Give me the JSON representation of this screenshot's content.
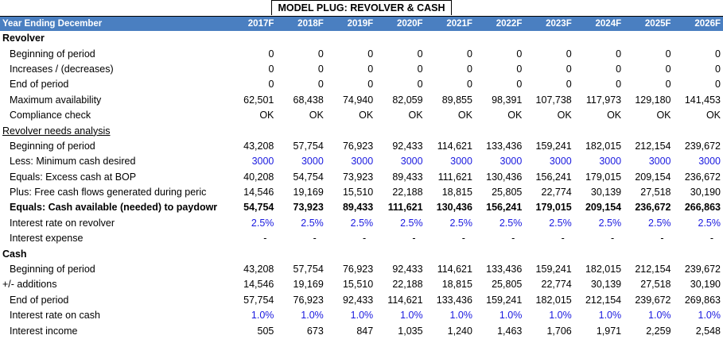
{
  "title": "MODEL PLUG: REVOLVER & CASH",
  "header": {
    "label": "Year Ending December",
    "years": [
      "2017F",
      "2018F",
      "2019F",
      "2020F",
      "2021F",
      "2022F",
      "2023F",
      "2024F",
      "2025F",
      "2026F"
    ]
  },
  "rows": [
    {
      "label": "Revolver"
    },
    {
      "label": "Beginning of period",
      "values": [
        0,
        0,
        0,
        0,
        0,
        0,
        0,
        0,
        0,
        0
      ]
    },
    {
      "label": "Increases / (decreases)",
      "values": [
        0,
        0,
        0,
        0,
        0,
        0,
        0,
        0,
        0,
        0
      ]
    },
    {
      "label": "End of period",
      "values": [
        0,
        0,
        0,
        0,
        0,
        0,
        0,
        0,
        0,
        0
      ]
    },
    {
      "label": "Maximum availability",
      "values": [
        "62,501",
        "68,438",
        "74,940",
        "82,059",
        "89,855",
        "98,391",
        "107,738",
        "117,973",
        "129,180",
        "141,453"
      ]
    },
    {
      "label": "Compliance check",
      "values": [
        "OK",
        "OK",
        "OK",
        "OK",
        "OK",
        "OK",
        "OK",
        "OK",
        "OK",
        "OK"
      ]
    },
    {
      "label": "Revolver needs analysis"
    },
    {
      "label": "Beginning of period",
      "values": [
        "43,208",
        "57,754",
        "76,923",
        "92,433",
        "114,621",
        "133,436",
        "159,241",
        "182,015",
        "212,154",
        "239,672"
      ]
    },
    {
      "label": "Less: Minimum cash desired",
      "values": [
        3000,
        3000,
        3000,
        3000,
        3000,
        3000,
        3000,
        3000,
        3000,
        3000
      ]
    },
    {
      "label": "Equals: Excess cash at BOP",
      "values": [
        "40,208",
        "54,754",
        "73,923",
        "89,433",
        "111,621",
        "130,436",
        "156,241",
        "179,015",
        "209,154",
        "236,672"
      ]
    },
    {
      "label": "Plus: Free cash flows generated during peric",
      "values": [
        "14,546",
        "19,169",
        "15,510",
        "22,188",
        "18,815",
        "25,805",
        "22,774",
        "30,139",
        "27,518",
        "30,190"
      ]
    },
    {
      "label": "Equals: Cash available (needed) to paydowr",
      "values": [
        "54,754",
        "73,923",
        "89,433",
        "111,621",
        "130,436",
        "156,241",
        "179,015",
        "209,154",
        "236,672",
        "266,863"
      ]
    },
    {
      "label": "Interest rate on revolver",
      "values": [
        "2.5%",
        "2.5%",
        "2.5%",
        "2.5%",
        "2.5%",
        "2.5%",
        "2.5%",
        "2.5%",
        "2.5%",
        "2.5%"
      ]
    },
    {
      "label": "Interest expense",
      "values": [
        "-",
        "-",
        "-",
        "-",
        "-",
        "-",
        "-",
        "-",
        "-",
        "-"
      ]
    },
    {
      "label": "Cash"
    },
    {
      "label": "Beginning of period",
      "values": [
        "43,208",
        "57,754",
        "76,923",
        "92,433",
        "114,621",
        "133,436",
        "159,241",
        "182,015",
        "212,154",
        "239,672"
      ]
    },
    {
      "label": "+/- additions",
      "values": [
        "14,546",
        "19,169",
        "15,510",
        "22,188",
        "18,815",
        "25,805",
        "22,774",
        "30,139",
        "27,518",
        "30,190"
      ]
    },
    {
      "label": "End of period",
      "values": [
        "57,754",
        "76,923",
        "92,433",
        "114,621",
        "133,436",
        "159,241",
        "182,015",
        "212,154",
        "239,672",
        "269,863"
      ]
    },
    {
      "label": "Interest rate on cash",
      "values": [
        "1.0%",
        "1.0%",
        "1.0%",
        "1.0%",
        "1.0%",
        "1.0%",
        "1.0%",
        "1.0%",
        "1.0%",
        "1.0%"
      ]
    },
    {
      "label": "Interest income",
      "values": [
        505,
        673,
        847,
        "1,035",
        "1,240",
        "1,463",
        "1,706",
        "1,971",
        "2,259",
        "2,548"
      ]
    }
  ]
}
